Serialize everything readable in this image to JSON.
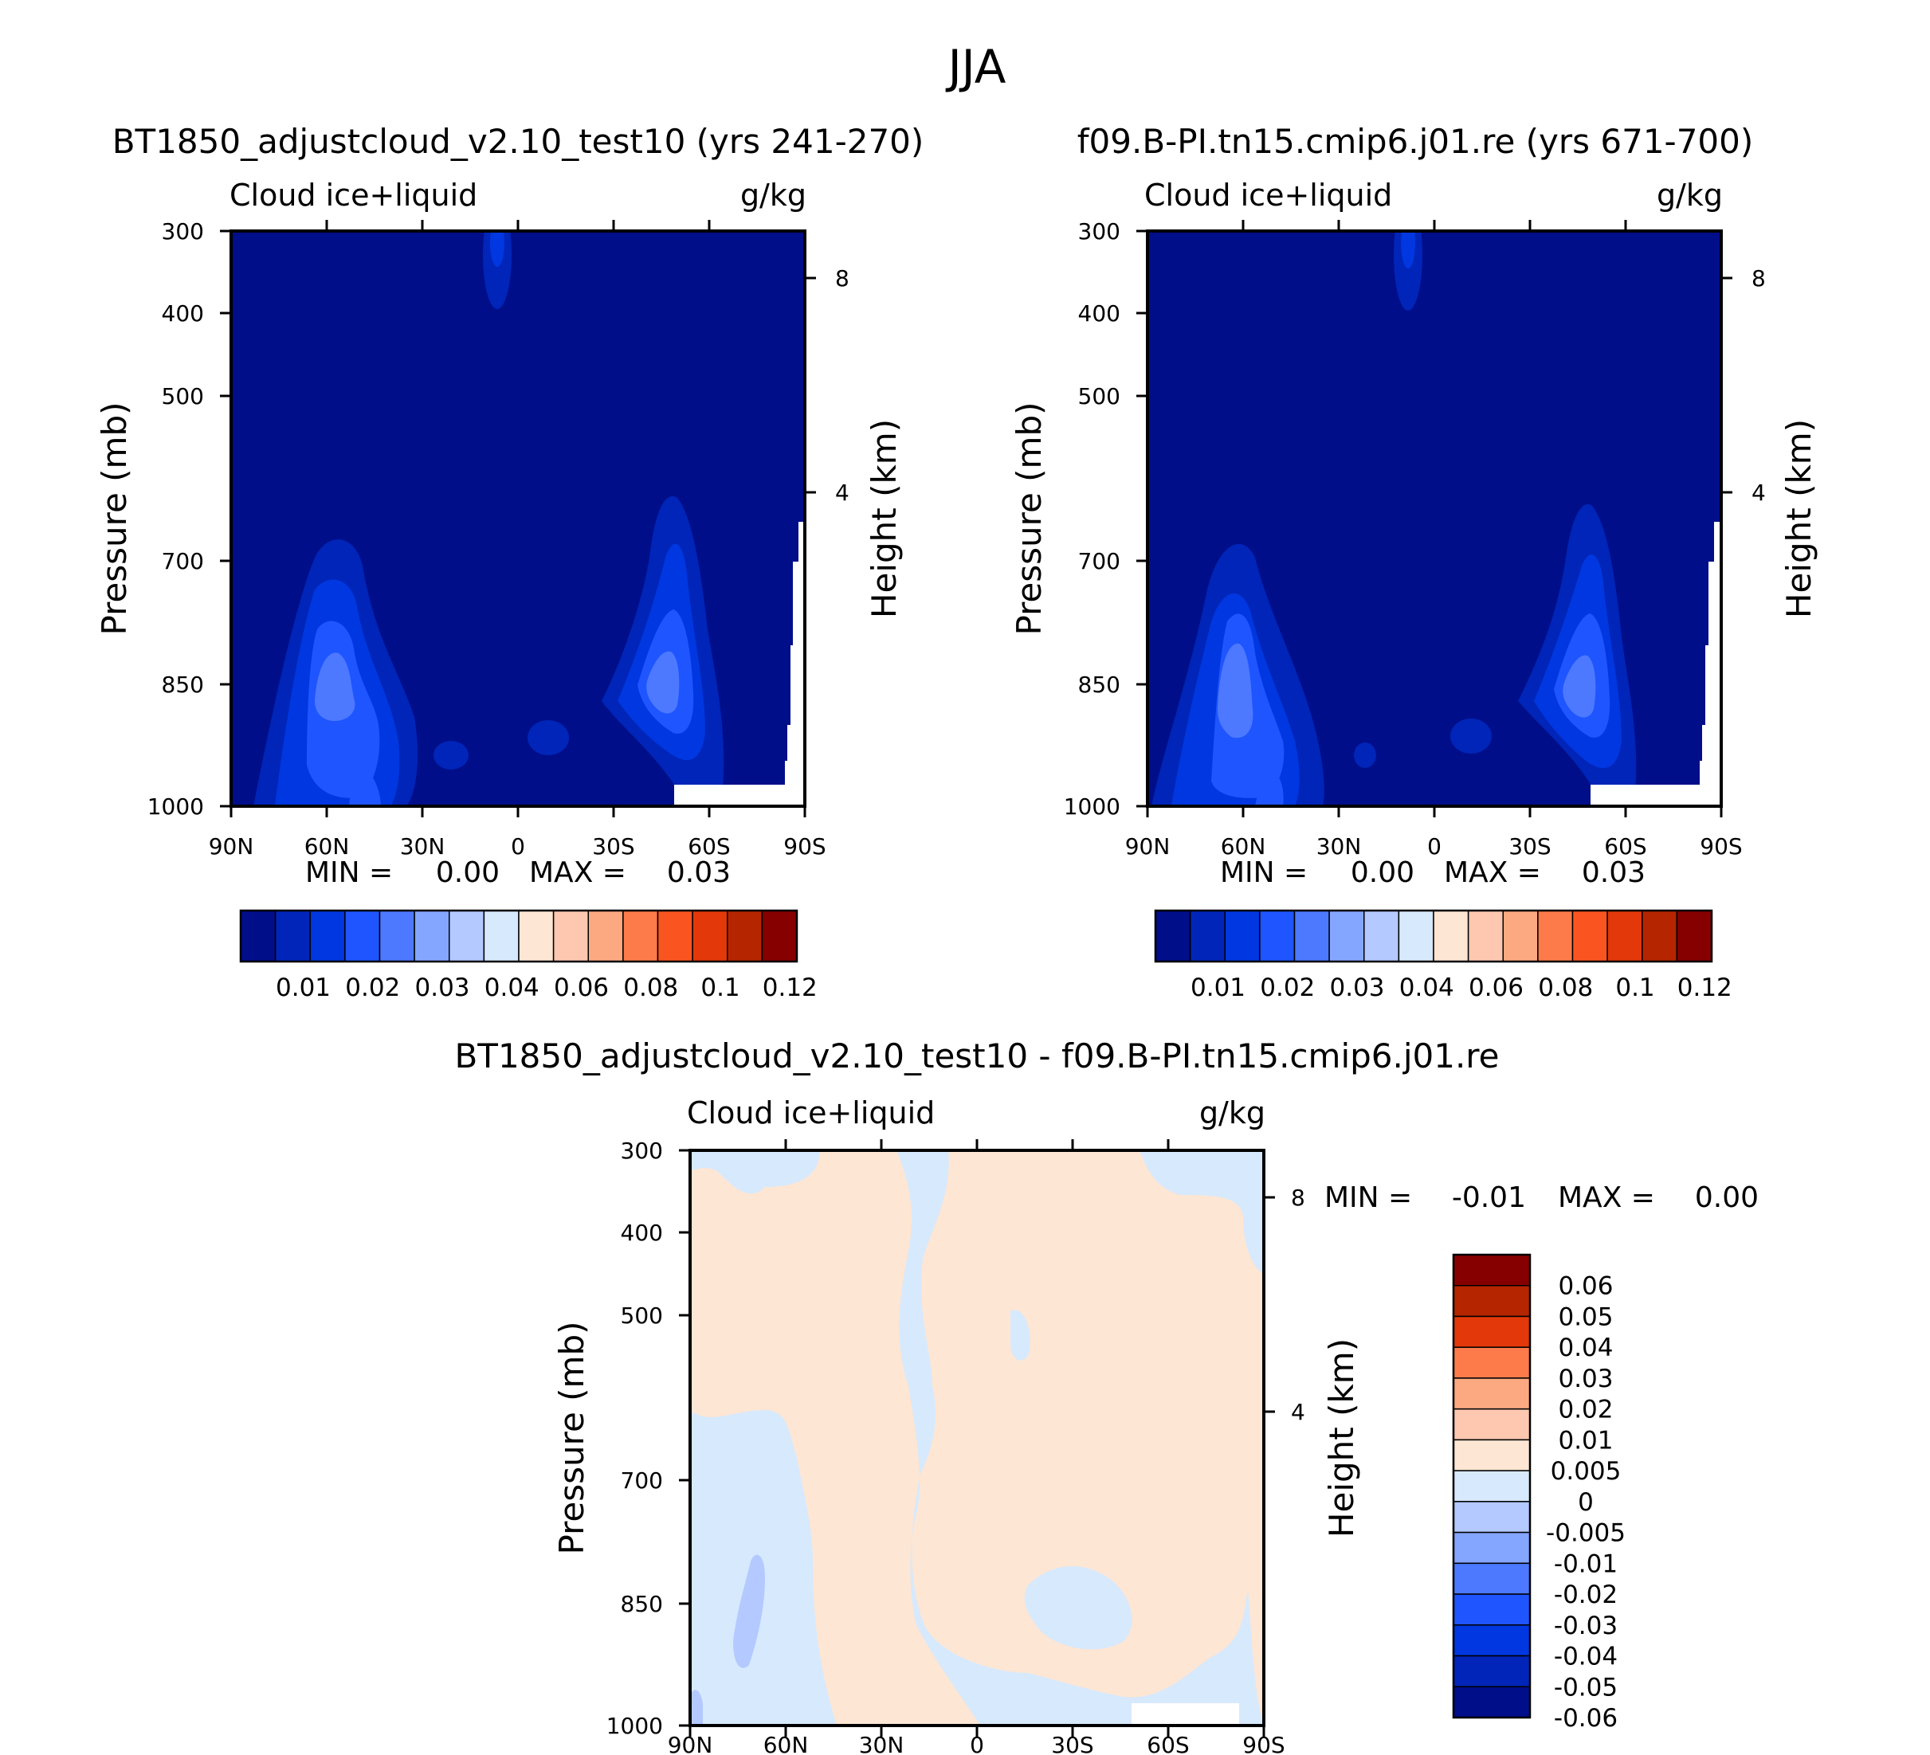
{
  "figure": {
    "season_title": "JJA"
  },
  "panels": [
    {
      "id": "test",
      "case_title": "BT1850_adjustcloud_v2.10_test10 (yrs 241-270)",
      "variable": "Cloud ice+liquid",
      "units": "g/kg",
      "left_axis_label": "Pressure (mb)",
      "right_axis_label": "Height (km)",
      "min_label": "MIN =",
      "min_value": "0.00",
      "max_label": "MAX =",
      "max_value": "0.03"
    },
    {
      "id": "control",
      "case_title": "f09.B-PI.tn15.cmip6.j01.re (yrs 671-700)",
      "variable": "Cloud ice+liquid",
      "units": "g/kg",
      "left_axis_label": "Pressure (mb)",
      "right_axis_label": "Height (km)",
      "min_label": "MIN =",
      "min_value": "0.00",
      "max_label": "MAX =",
      "max_value": "0.03"
    },
    {
      "id": "difference",
      "case_title": "BT1850_adjustcloud_v2.10_test10 - f09.B-PI.tn15.cmip6.j01.re",
      "variable": "Cloud ice+liquid",
      "units": "g/kg",
      "left_axis_label": "Pressure (mb)",
      "right_axis_label": "Height (km)",
      "min_label": "MIN =",
      "min_value": "-0.01",
      "max_label": "MAX =",
      "max_value": "0.00"
    }
  ],
  "colorbars": {
    "mean": {
      "colors": [
        "#000e8a",
        "#0025b8",
        "#0037e0",
        "#1f55ff",
        "#4c79ff",
        "#85a6ff",
        "#b3c9ff",
        "#d7e9fd",
        "#fde6d3",
        "#fdc7b0",
        "#fca981",
        "#fd7b4a",
        "#fa5521",
        "#e3380a",
        "#b52500",
        "#870000"
      ],
      "tick_labels": [
        "0.01",
        "0.02",
        "0.03",
        "0.04",
        "0.06",
        "0.08",
        "0.1",
        "0.12"
      ]
    },
    "diff": {
      "colors": [
        "#870000",
        "#b52500",
        "#e3380a",
        "#fd7b4a",
        "#fca981",
        "#fdc7b0",
        "#fde6d3",
        "#d7e9fd",
        "#b3c9ff",
        "#85a6ff",
        "#4c79ff",
        "#1f55ff",
        "#0037e0",
        "#0025b8",
        "#000e8a"
      ],
      "tick_labels": [
        "0.06",
        "0.05",
        "0.04",
        "0.03",
        "0.02",
        "0.01",
        "0.005",
        "0",
        "-0.005",
        "-0.01",
        "-0.02",
        "-0.03",
        "-0.04",
        "-0.05",
        "-0.06"
      ]
    }
  },
  "chart_data": [
    {
      "type": "heatmap",
      "panel": "test",
      "title": "BT1850_adjustcloud_v2.10_test10 (yrs 241-270)",
      "subtitle_left": "Cloud ice+liquid",
      "subtitle_right": "g/kg",
      "xlabel": "",
      "ylabel": "Pressure (mb)",
      "y2label": "Height (km)",
      "x_ticks": [
        "90N",
        "60N",
        "30N",
        "0",
        "30S",
        "60S",
        "90S"
      ],
      "y_ticks": [
        300,
        400,
        500,
        700,
        850,
        1000
      ],
      "y2_ticks": [
        8,
        4
      ],
      "xlim": [
        90,
        -90
      ],
      "ylim": [
        1000,
        300
      ],
      "contour_levels": [
        0.01,
        0.02,
        0.03,
        0.04,
        0.06,
        0.08,
        0.1,
        0.12
      ],
      "min": 0.0,
      "max": 0.03
    },
    {
      "type": "heatmap",
      "panel": "control",
      "title": "f09.B-PI.tn15.cmip6.j01.re (yrs 671-700)",
      "subtitle_left": "Cloud ice+liquid",
      "subtitle_right": "g/kg",
      "xlabel": "",
      "ylabel": "Pressure (mb)",
      "y2label": "Height (km)",
      "x_ticks": [
        "90N",
        "60N",
        "30N",
        "0",
        "30S",
        "60S",
        "90S"
      ],
      "y_ticks": [
        300,
        400,
        500,
        700,
        850,
        1000
      ],
      "y2_ticks": [
        8,
        4
      ],
      "xlim": [
        90,
        -90
      ],
      "ylim": [
        1000,
        300
      ],
      "contour_levels": [
        0.01,
        0.02,
        0.03,
        0.04,
        0.06,
        0.08,
        0.1,
        0.12
      ],
      "min": 0.0,
      "max": 0.03
    },
    {
      "type": "heatmap",
      "panel": "difference",
      "title": "BT1850_adjustcloud_v2.10_test10 - f09.B-PI.tn15.cmip6.j01.re",
      "subtitle_left": "Cloud ice+liquid",
      "subtitle_right": "g/kg",
      "xlabel": "",
      "ylabel": "Pressure (mb)",
      "y2label": "Height (km)",
      "x_ticks": [
        "90N",
        "60N",
        "30N",
        "0",
        "30S",
        "60S",
        "90S"
      ],
      "y_ticks": [
        300,
        400,
        500,
        700,
        850,
        1000
      ],
      "y2_ticks": [
        8,
        4
      ],
      "xlim": [
        90,
        -90
      ],
      "ylim": [
        1000,
        300
      ],
      "contour_levels": [
        0.06,
        0.05,
        0.04,
        0.03,
        0.02,
        0.01,
        0.005,
        0,
        -0.005,
        -0.01,
        -0.02,
        -0.03,
        -0.04,
        -0.05,
        -0.06
      ],
      "min": -0.01,
      "max": 0.0
    }
  ]
}
